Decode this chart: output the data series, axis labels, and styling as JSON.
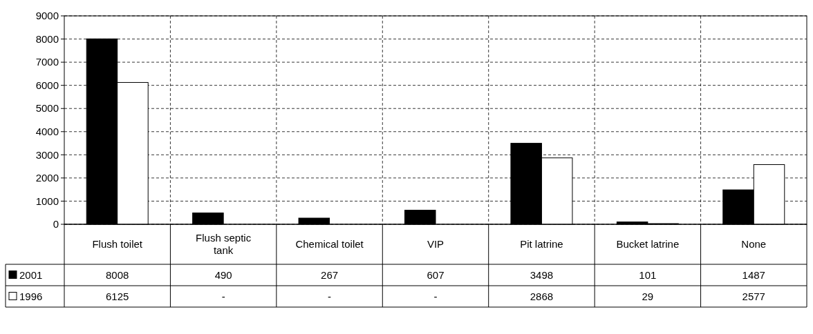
{
  "chart_data": {
    "type": "bar",
    "categories": [
      "Flush toilet",
      "Flush septic tank",
      "Chemical toilet",
      "VIP",
      "Pit latrine",
      "Bucket latrine",
      "None"
    ],
    "series": [
      {
        "name": "2001",
        "color": "#000000",
        "values": [
          8008,
          490,
          267,
          607,
          3498,
          101,
          1487
        ],
        "value_labels": [
          "8008",
          "490",
          "267",
          "607",
          "3498",
          "101",
          "1487"
        ]
      },
      {
        "name": "1996",
        "color": "#ffffff",
        "values": [
          6125,
          null,
          null,
          null,
          2868,
          29,
          2577
        ],
        "value_labels": [
          "6125",
          "-",
          "-",
          "-",
          "2868",
          "29",
          "2577"
        ]
      }
    ],
    "ylim": [
      0,
      9000
    ],
    "yticks": [
      0,
      1000,
      2000,
      3000,
      4000,
      5000,
      6000,
      7000,
      8000,
      9000
    ],
    "grid": true,
    "legend": "bottom left"
  }
}
